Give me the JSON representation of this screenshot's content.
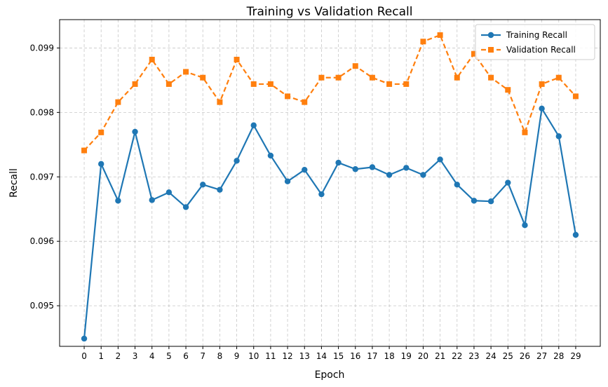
{
  "chart_data": {
    "type": "line",
    "title": "Training vs Validation Recall",
    "xlabel": "Epoch",
    "ylabel": "Recall",
    "x": [
      0,
      1,
      2,
      3,
      4,
      5,
      6,
      7,
      8,
      9,
      10,
      11,
      12,
      13,
      14,
      15,
      16,
      17,
      18,
      19,
      20,
      21,
      22,
      23,
      24,
      25,
      26,
      27,
      28,
      29
    ],
    "xticks": [
      "0",
      "1",
      "2",
      "3",
      "4",
      "5",
      "6",
      "7",
      "8",
      "9",
      "10",
      "11",
      "12",
      "13",
      "14",
      "15",
      "16",
      "17",
      "18",
      "19",
      "20",
      "21",
      "22",
      "23",
      "24",
      "25",
      "26",
      "27",
      "28",
      "29"
    ],
    "yticks": [
      0.095,
      0.096,
      0.097,
      0.098,
      0.099
    ],
    "ytick_labels": [
      "0.095",
      "0.096",
      "0.097",
      "0.098",
      "0.099"
    ],
    "xlim": [
      -1.45,
      30.45
    ],
    "ylim": [
      0.09437,
      0.09944
    ],
    "grid": true,
    "legend_position": "top-right",
    "series": [
      {
        "name": "Training Recall",
        "color": "#1f77b4",
        "marker": "circle",
        "linestyle": "solid",
        "values": [
          0.09449,
          0.0972,
          0.09663,
          0.0977,
          0.09664,
          0.09676,
          0.09653,
          0.09688,
          0.0968,
          0.09725,
          0.0978,
          0.09733,
          0.09693,
          0.09711,
          0.09673,
          0.09722,
          0.09712,
          0.09715,
          0.09703,
          0.09714,
          0.09703,
          0.09727,
          0.09688,
          0.09663,
          0.09662,
          0.09691,
          0.09625,
          0.09806,
          0.09763,
          0.0961
        ]
      },
      {
        "name": "Validation Recall",
        "color": "#ff7f0e",
        "marker": "square",
        "linestyle": "dashed",
        "values": [
          0.09741,
          0.09769,
          0.09816,
          0.09844,
          0.09882,
          0.09844,
          0.09863,
          0.09854,
          0.09816,
          0.09882,
          0.09844,
          0.09844,
          0.09825,
          0.09816,
          0.09854,
          0.09854,
          0.09872,
          0.09854,
          0.09844,
          0.09844,
          0.0991,
          0.0992,
          0.09854,
          0.09891,
          0.09854,
          0.09835,
          0.09769,
          0.09844,
          0.09854,
          0.09825
        ]
      }
    ]
  }
}
